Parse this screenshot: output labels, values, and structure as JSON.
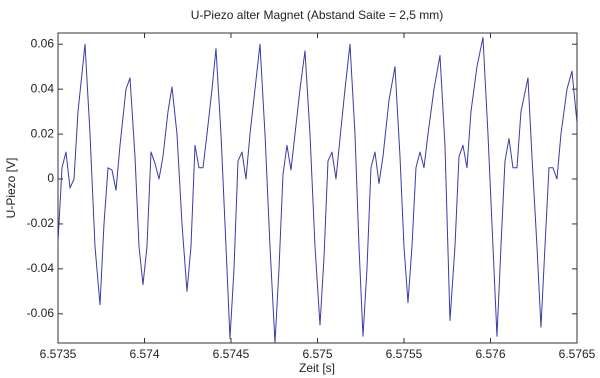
{
  "chart_data": {
    "type": "line",
    "title": "U-Piezo alter Magnet (Abstand Saite = 2,5 mm)",
    "xlabel": "Zeit [s]",
    "ylabel": "U-Piezo [V]",
    "x": [
      6.5735,
      6.5735231,
      6.5735462,
      6.5735694,
      6.5735925,
      6.5736156,
      6.5736561,
      6.573685,
      6.5737139,
      6.5737428,
      6.5737659,
      6.573789,
      6.5738121,
      6.5738352,
      6.5738584,
      6.573893,
      6.5739162,
      6.5739451,
      6.5739682,
      6.5739913,
      6.5740144,
      6.5740376,
      6.5740607,
      6.5740838,
      6.5741069,
      6.5741358,
      6.5741589,
      6.5741878,
      6.5742167,
      6.5742456,
      6.5742687,
      6.5742919,
      6.574315,
      6.5743381,
      6.5743612,
      6.5743901,
      6.5744132,
      6.5744421,
      6.574471,
      6.5744942,
      6.5745173,
      6.5745404,
      6.5745635,
      6.5745866,
      6.5746098,
      6.5746387,
      6.5746676,
      6.5746965,
      6.5747254,
      6.5747543,
      6.5747774,
      6.5748005,
      6.5748236,
      6.5748467,
      6.5748699,
      6.5748988,
      6.5749277,
      6.5749566,
      6.5749855,
      6.5750144,
      6.5750375,
      6.5750606,
      6.5750837,
      6.5751068,
      6.57513,
      6.5751589,
      6.5751878,
      6.5752167,
      6.5752398,
      6.5752629,
      6.575286,
      6.5753091,
      6.5753323,
      6.5753554,
      6.5753785,
      6.5754132,
      6.5754479,
      6.5754768,
      6.5754999,
      6.575523,
      6.5755461,
      6.5755692,
      6.5755924,
      6.5756155,
      6.5756386,
      6.5756733,
      6.575708,
      6.5757369,
      6.5757658,
      6.5757947,
      6.5758178,
      6.5758409,
      6.575864,
      6.5758871,
      6.5759218,
      6.5759565,
      6.5759854,
      6.5760143,
      6.5760374,
      6.5760605,
      6.5760837,
      6.5761068,
      6.5761299,
      6.576153,
      6.5761761,
      6.5762166,
      6.5762397,
      6.5762686,
      6.5762917,
      6.5763149,
      6.576338,
      6.5763611,
      6.5763842,
      6.5764073,
      6.576442,
      6.5764709,
      6.5765
    ],
    "series": [
      {
        "color": "#3a3aa8",
        "values": [
          -0.028,
          0.005,
          0.012,
          -0.004,
          0.0,
          0.03,
          0.06,
          0.02,
          -0.03,
          -0.056,
          -0.02,
          0.005,
          0.004,
          -0.005,
          0.015,
          0.04,
          0.045,
          0.01,
          -0.03,
          -0.047,
          -0.03,
          0.012,
          0.007,
          0.0,
          0.01,
          0.03,
          0.041,
          0.02,
          -0.02,
          -0.05,
          -0.03,
          0.015,
          0.005,
          0.005,
          0.02,
          0.04,
          0.058,
          0.02,
          -0.03,
          -0.071,
          -0.04,
          0.008,
          0.012,
          0.0,
          0.02,
          0.04,
          0.06,
          0.02,
          -0.03,
          -0.073,
          -0.04,
          0.002,
          0.015,
          0.004,
          0.02,
          0.04,
          0.057,
          0.02,
          -0.03,
          -0.065,
          -0.035,
          0.008,
          0.012,
          0.0,
          0.018,
          0.04,
          0.06,
          0.02,
          -0.03,
          -0.07,
          -0.04,
          0.005,
          0.012,
          -0.002,
          0.01,
          0.035,
          0.05,
          0.01,
          -0.03,
          -0.055,
          -0.03,
          0.005,
          0.012,
          0.005,
          0.02,
          0.04,
          0.055,
          0.015,
          -0.063,
          -0.03,
          0.01,
          0.015,
          0.005,
          0.03,
          0.05,
          0.063,
          0.02,
          -0.03,
          -0.07,
          -0.03,
          0.008,
          0.018,
          0.005,
          0.005,
          0.03,
          0.045,
          0.01,
          -0.03,
          -0.066,
          -0.03,
          0.005,
          0.005,
          0.0,
          0.02,
          0.04,
          0.048,
          0.025
        ]
      }
    ],
    "xlim": [
      6.5735,
      6.5765
    ],
    "xticks": [
      6.5735,
      6.574,
      6.5745,
      6.575,
      6.5755,
      6.576,
      6.5765
    ],
    "ylim": [
      -0.073,
      0.065
    ],
    "yticks": [
      -0.06,
      -0.04,
      -0.02,
      0,
      0.02,
      0.04,
      0.06
    ],
    "grid": false
  }
}
